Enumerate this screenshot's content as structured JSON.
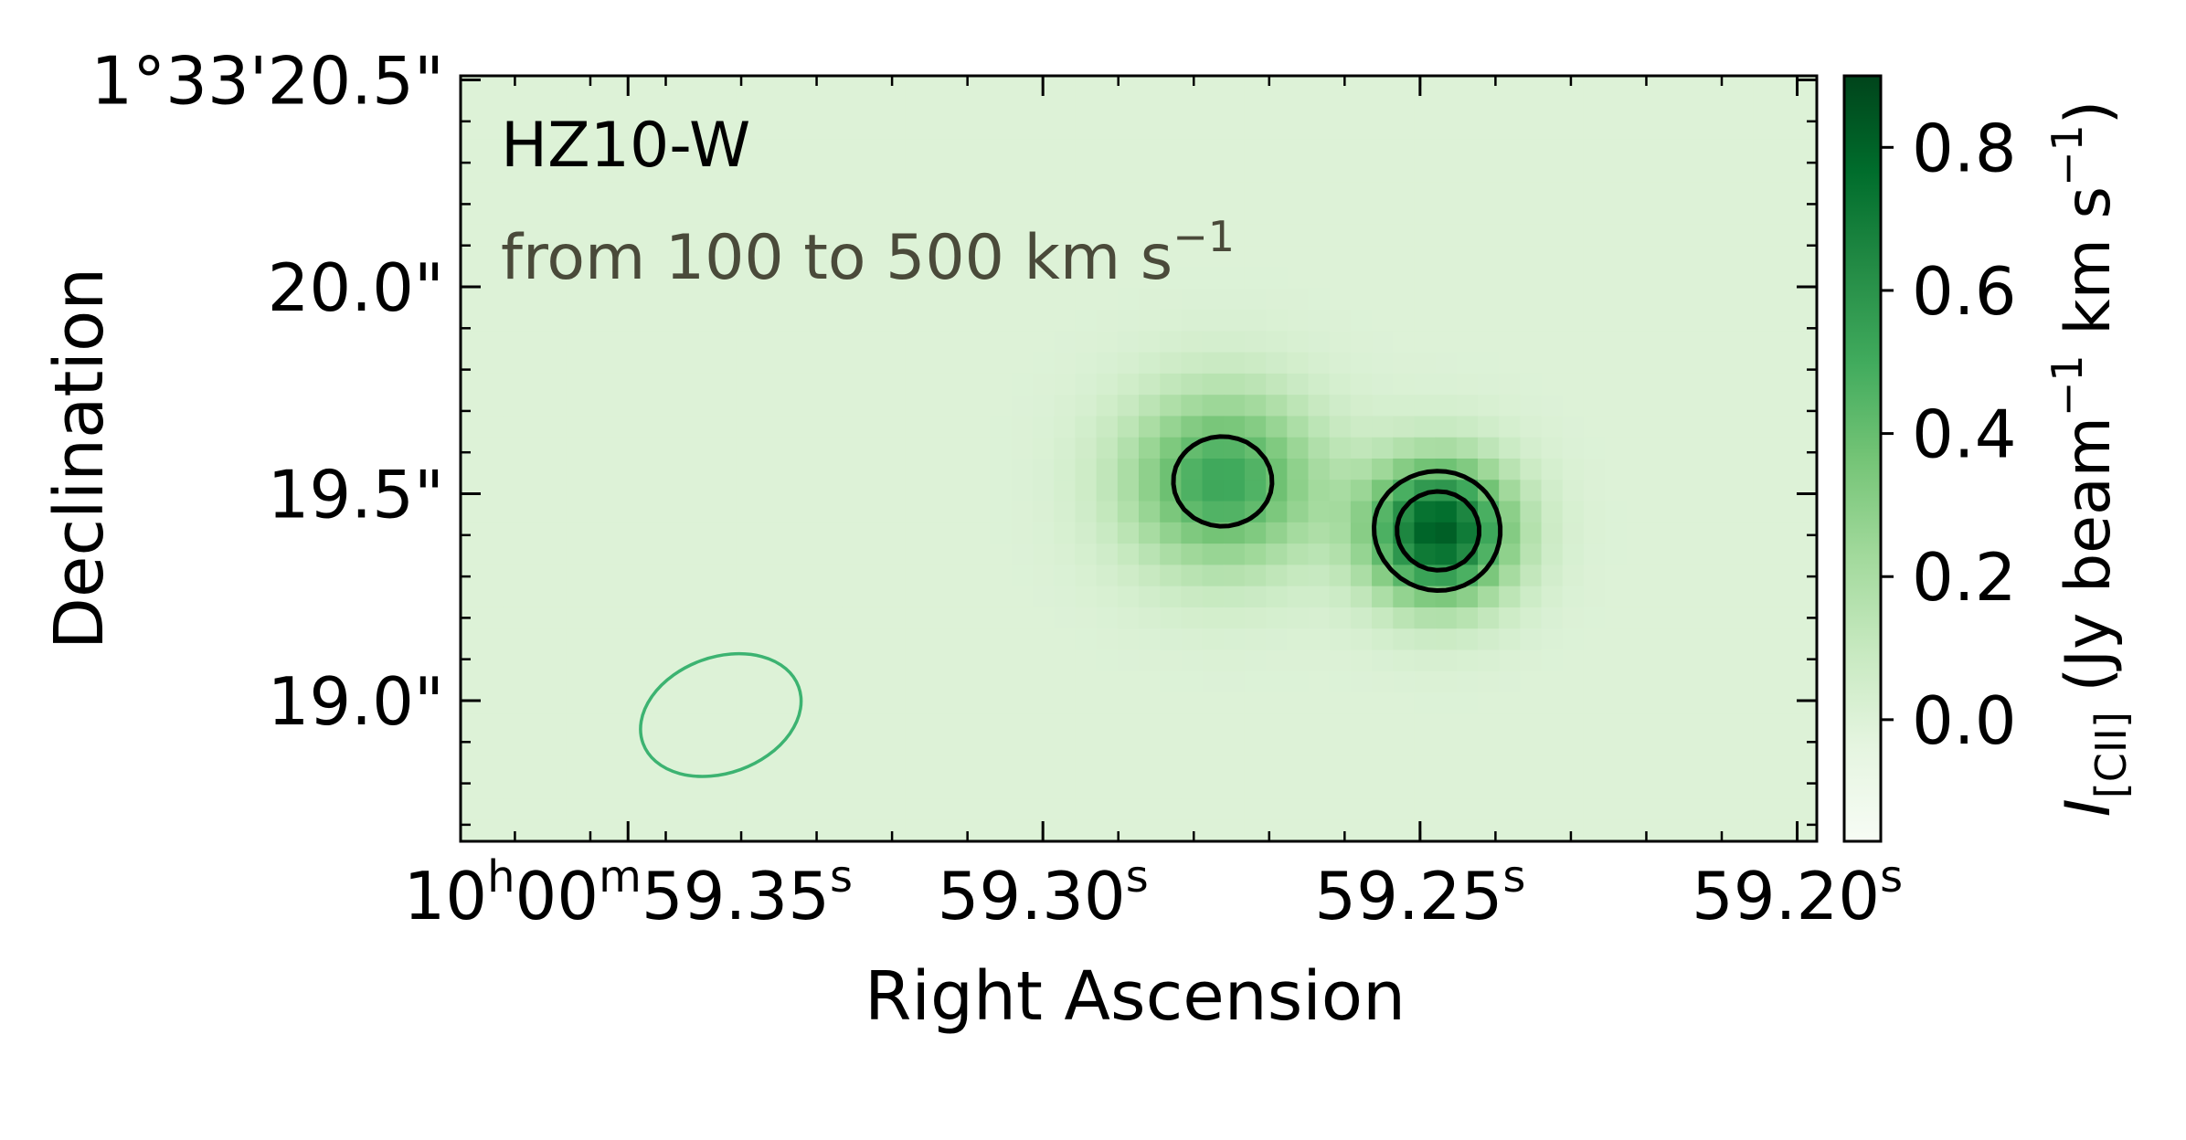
{
  "chart_data": {
    "type": "heatmap",
    "title": "",
    "panel_label": "HZ10-W",
    "velocity_label": {
      "prefix": "from 100 to 500 km s",
      "exponent": "−1"
    },
    "xlabel": "Right Ascension",
    "ylabel": "Declination",
    "x_ticks": [
      {
        "ra_sec": 59.355,
        "parts": [
          [
            "10",
            ""
          ],
          [
            "h",
            "sup"
          ],
          [
            "00",
            ""
          ],
          [
            "m",
            "sup"
          ],
          [
            "59.35",
            ""
          ],
          [
            "s",
            "sup"
          ]
        ]
      },
      {
        "ra_sec": 59.3,
        "parts": [
          [
            "59.30",
            ""
          ],
          [
            "s",
            "sup"
          ]
        ]
      },
      {
        "ra_sec": 59.25,
        "parts": [
          [
            "59.25",
            ""
          ],
          [
            "s",
            "sup"
          ]
        ]
      },
      {
        "ra_sec": 59.2,
        "parts": [
          [
            "59.20",
            ""
          ],
          [
            "s",
            "sup"
          ]
        ]
      }
    ],
    "xlim_ra_sec": [
      59.3772,
      59.1974
    ],
    "y_ticks": [
      {
        "dec_arcsec": 20.5,
        "label": "1°33'20.5\""
      },
      {
        "dec_arcsec": 20.0,
        "label": "20.0\""
      },
      {
        "dec_arcsec": 19.5,
        "label": "19.5\""
      },
      {
        "dec_arcsec": 19.0,
        "label": "19.0\""
      }
    ],
    "ylim_dec_arcsec": [
      18.66,
      20.51
    ],
    "colorbar": {
      "colormap": "Greens",
      "vmin": -0.17,
      "vmax": 0.9,
      "ticks": [
        0.0,
        0.2,
        0.4,
        0.6,
        0.8
      ],
      "tick_labels": [
        "0.0",
        "0.2",
        "0.4",
        "0.6",
        "0.8"
      ],
      "label": {
        "I": "I",
        "sub": "[CII]",
        "text1": " (Jy beam",
        "exp1": "−1",
        "text2": " km s",
        "exp2": "−1",
        "close": ")"
      },
      "colors": [
        "#f7fcf5",
        "#e5f5e0",
        "#c7e9c0",
        "#a1d99b",
        "#74c476",
        "#41ab5d",
        "#238b45",
        "#006d2c",
        "#00441b"
      ]
    },
    "emission_components": [
      {
        "ra_sec": 59.2475,
        "dec_arcsec": 19.41,
        "peak": 0.82,
        "sigma_ra_sec": 0.0068,
        "sigma_dec_arcsec": 0.12
      },
      {
        "ra_sec": 59.2762,
        "dec_arcsec": 19.53,
        "peak": 0.52,
        "sigma_ra_sec": 0.009,
        "sigma_dec_arcsec": 0.15
      }
    ],
    "background_level": 0.0,
    "contours": {
      "levels": [
        0.4,
        0.6
      ],
      "color": "#000000"
    },
    "beam": {
      "ra_sec": 59.3427,
      "dec_arcsec": 18.965,
      "major_arcsec": 0.4,
      "minor_arcsec": 0.28,
      "pa_deg": -20,
      "color": "#3cb371"
    }
  }
}
